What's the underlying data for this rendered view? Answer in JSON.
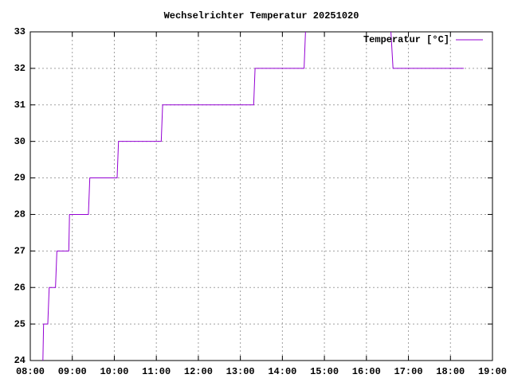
{
  "chart_data": {
    "type": "line",
    "title": "Wechselrichter Temperatur 20251020",
    "x": [
      "08:18",
      "08:19",
      "08:25",
      "08:27",
      "08:36",
      "08:38",
      "08:55",
      "08:56",
      "09:23",
      "09:25",
      "10:04",
      "10:06",
      "11:07",
      "11:09",
      "13:19",
      "13:21",
      "14:31",
      "14:33",
      null,
      "16:35",
      "16:38",
      "18:19"
    ],
    "series": [
      {
        "name": "Temperatur [°C]",
        "color": "#9400d3",
        "values": [
          24,
          25,
          25,
          26,
          26,
          27,
          27,
          28,
          28,
          29,
          29,
          30,
          30,
          31,
          31,
          32,
          32,
          33,
          null,
          33,
          32,
          32
        ]
      }
    ],
    "xlim": [
      "08:00",
      "19:00"
    ],
    "xticks": [
      "08:00",
      "09:00",
      "10:00",
      "11:00",
      "12:00",
      "13:00",
      "14:00",
      "15:00",
      "16:00",
      "17:00",
      "18:00",
      "19:00"
    ],
    "ylim": [
      24,
      33
    ],
    "yticks": [
      24,
      25,
      26,
      27,
      28,
      29,
      30,
      31,
      32,
      33
    ],
    "grid": true,
    "legend": "top right"
  }
}
